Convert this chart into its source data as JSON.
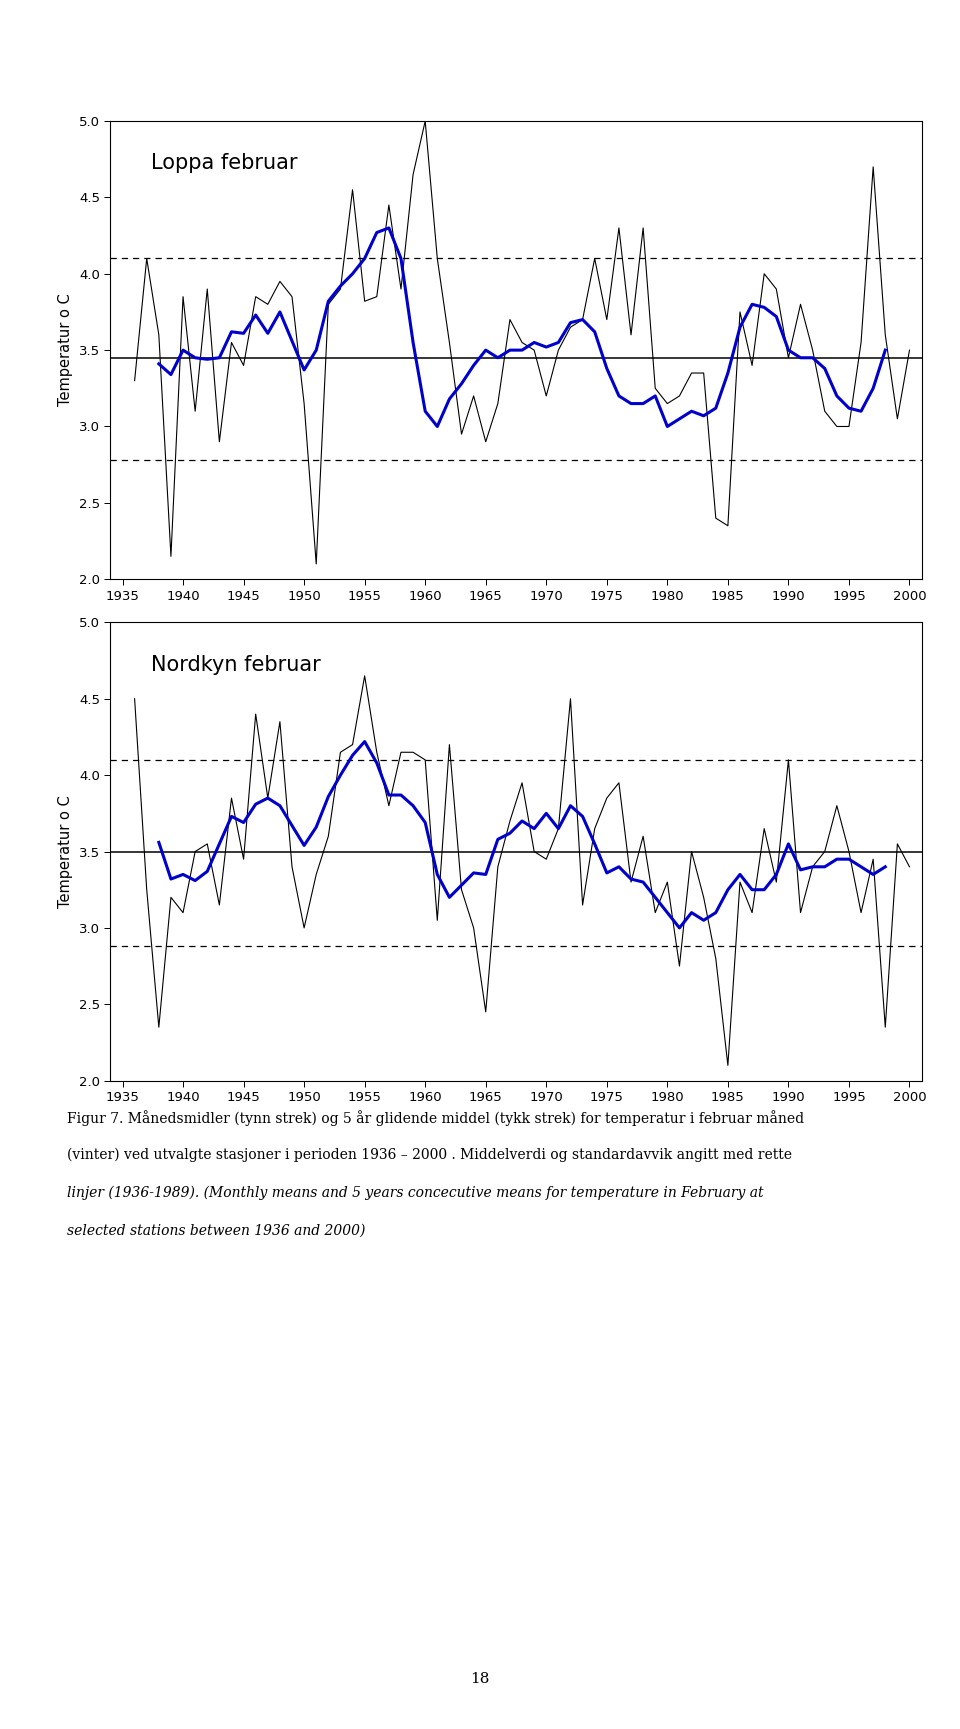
{
  "loppa": {
    "title": "Loppa februar",
    "ylabel": "Temperatur o C",
    "ylim": [
      2.0,
      5.0
    ],
    "yticks": [
      2.0,
      2.5,
      3.0,
      3.5,
      4.0,
      4.5,
      5.0
    ],
    "mean_line": 3.45,
    "upper_std": 4.1,
    "lower_std": 2.78,
    "monthly": {
      "years": [
        1936,
        1937,
        1938,
        1939,
        1940,
        1941,
        1942,
        1943,
        1944,
        1945,
        1946,
        1947,
        1948,
        1949,
        1950,
        1951,
        1952,
        1953,
        1954,
        1955,
        1956,
        1957,
        1958,
        1959,
        1960,
        1961,
        1962,
        1963,
        1964,
        1965,
        1966,
        1967,
        1968,
        1969,
        1970,
        1971,
        1972,
        1973,
        1974,
        1975,
        1976,
        1977,
        1978,
        1979,
        1980,
        1981,
        1982,
        1983,
        1984,
        1985,
        1986,
        1987,
        1988,
        1989,
        1990,
        1991,
        1992,
        1993,
        1994,
        1995,
        1996,
        1997,
        1998,
        1999,
        2000
      ],
      "values": [
        3.3,
        4.1,
        3.6,
        2.15,
        3.85,
        3.1,
        3.9,
        2.9,
        3.55,
        3.4,
        3.85,
        3.8,
        3.95,
        3.85,
        3.15,
        2.1,
        3.8,
        3.9,
        4.55,
        3.82,
        3.85,
        4.45,
        3.9,
        4.65,
        5.0,
        4.1,
        3.55,
        2.95,
        3.2,
        2.9,
        3.15,
        3.7,
        3.55,
        3.5,
        3.2,
        3.5,
        3.65,
        3.7,
        4.1,
        3.7,
        4.3,
        3.6,
        4.3,
        3.25,
        3.15,
        3.2,
        3.35,
        3.35,
        2.4,
        2.35,
        3.75,
        3.4,
        4.0,
        3.9,
        3.45,
        3.8,
        3.5,
        3.1,
        3.0,
        3.0,
        3.55,
        4.7,
        3.6,
        3.05,
        3.5
      ]
    },
    "smooth": {
      "years": [
        1938,
        1939,
        1940,
        1941,
        1942,
        1943,
        1944,
        1945,
        1946,
        1947,
        1948,
        1949,
        1950,
        1951,
        1952,
        1953,
        1954,
        1955,
        1956,
        1957,
        1958,
        1959,
        1960,
        1961,
        1962,
        1963,
        1964,
        1965,
        1966,
        1967,
        1968,
        1969,
        1970,
        1971,
        1972,
        1973,
        1974,
        1975,
        1976,
        1977,
        1978,
        1979,
        1980,
        1981,
        1982,
        1983,
        1984,
        1985,
        1986,
        1987,
        1988,
        1989,
        1990,
        1991,
        1992,
        1993,
        1994,
        1995,
        1996,
        1997,
        1998
      ],
      "values": [
        3.41,
        3.34,
        3.5,
        3.45,
        3.44,
        3.45,
        3.62,
        3.61,
        3.73,
        3.61,
        3.75,
        3.56,
        3.37,
        3.5,
        3.82,
        3.92,
        4.0,
        4.1,
        4.27,
        4.3,
        4.1,
        3.55,
        3.1,
        3.0,
        3.18,
        3.28,
        3.4,
        3.5,
        3.45,
        3.5,
        3.5,
        3.55,
        3.52,
        3.55,
        3.68,
        3.7,
        3.62,
        3.38,
        3.2,
        3.15,
        3.15,
        3.2,
        3.0,
        3.05,
        3.1,
        3.07,
        3.12,
        3.35,
        3.65,
        3.8,
        3.78,
        3.72,
        3.5,
        3.45,
        3.45,
        3.38,
        3.2,
        3.12,
        3.1,
        3.25,
        3.5
      ]
    }
  },
  "nordkyn": {
    "title": "Nordkyn februar",
    "ylabel": "Temperatur o C",
    "ylim": [
      2.0,
      5.0
    ],
    "yticks": [
      2.0,
      2.5,
      3.0,
      3.5,
      4.0,
      4.5,
      5.0
    ],
    "mean_line": 3.5,
    "upper_std": 4.1,
    "lower_std": 2.88,
    "monthly": {
      "years": [
        1936,
        1937,
        1938,
        1939,
        1940,
        1941,
        1942,
        1943,
        1944,
        1945,
        1946,
        1947,
        1948,
        1949,
        1950,
        1951,
        1952,
        1953,
        1954,
        1955,
        1956,
        1957,
        1958,
        1959,
        1960,
        1961,
        1962,
        1963,
        1964,
        1965,
        1966,
        1967,
        1968,
        1969,
        1970,
        1971,
        1972,
        1973,
        1974,
        1975,
        1976,
        1977,
        1978,
        1979,
        1980,
        1981,
        1982,
        1983,
        1984,
        1985,
        1986,
        1987,
        1988,
        1989,
        1990,
        1991,
        1992,
        1993,
        1994,
        1995,
        1996,
        1997,
        1998,
        1999,
        2000
      ],
      "values": [
        4.5,
        3.25,
        2.35,
        3.2,
        3.1,
        3.5,
        3.55,
        3.15,
        3.85,
        3.45,
        4.4,
        3.85,
        4.35,
        3.4,
        3.0,
        3.35,
        3.6,
        4.15,
        4.2,
        4.65,
        4.15,
        3.8,
        4.15,
        4.15,
        4.1,
        3.05,
        4.2,
        3.25,
        3.0,
        2.45,
        3.4,
        3.7,
        3.95,
        3.5,
        3.45,
        3.65,
        4.5,
        3.15,
        3.65,
        3.85,
        3.95,
        3.3,
        3.6,
        3.1,
        3.3,
        2.75,
        3.5,
        3.2,
        2.8,
        2.1,
        3.3,
        3.1,
        3.65,
        3.3,
        4.1,
        3.1,
        3.4,
        3.5,
        3.8,
        3.5,
        3.1,
        3.45,
        2.35,
        3.55,
        3.4
      ]
    },
    "smooth": {
      "years": [
        1938,
        1939,
        1940,
        1941,
        1942,
        1943,
        1944,
        1945,
        1946,
        1947,
        1948,
        1949,
        1950,
        1951,
        1952,
        1953,
        1954,
        1955,
        1956,
        1957,
        1958,
        1959,
        1960,
        1961,
        1962,
        1963,
        1964,
        1965,
        1966,
        1967,
        1968,
        1969,
        1970,
        1971,
        1972,
        1973,
        1974,
        1975,
        1976,
        1977,
        1978,
        1979,
        1980,
        1981,
        1982,
        1983,
        1984,
        1985,
        1986,
        1987,
        1988,
        1989,
        1990,
        1991,
        1992,
        1993,
        1994,
        1995,
        1996,
        1997,
        1998
      ],
      "values": [
        3.56,
        3.32,
        3.35,
        3.31,
        3.37,
        3.55,
        3.73,
        3.69,
        3.81,
        3.85,
        3.8,
        3.67,
        3.54,
        3.66,
        3.86,
        4.0,
        4.13,
        4.22,
        4.08,
        3.87,
        3.87,
        3.8,
        3.69,
        3.35,
        3.2,
        3.28,
        3.36,
        3.35,
        3.58,
        3.62,
        3.7,
        3.65,
        3.75,
        3.65,
        3.8,
        3.73,
        3.55,
        3.36,
        3.4,
        3.32,
        3.3,
        3.2,
        3.1,
        3.0,
        3.1,
        3.05,
        3.1,
        3.25,
        3.35,
        3.25,
        3.25,
        3.35,
        3.55,
        3.38,
        3.4,
        3.4,
        3.45,
        3.45,
        3.4,
        3.35,
        3.4
      ]
    }
  },
  "xlabel_ticks": [
    1935,
    1940,
    1945,
    1950,
    1955,
    1960,
    1965,
    1970,
    1975,
    1980,
    1985,
    1990,
    1995,
    2000
  ],
  "xlim": [
    1934,
    2001
  ],
  "caption_line1": "Figur 7. Månedsmidler (tynn strek) og 5 år glidende middel (tykk strek) for temperatur i februar måned",
  "caption_line2": "(vinter) ved utvalgte stasjoner i perioden 1936 – 2000 . Middelverdi og standardavvik angitt med rette",
  "caption_line3": "linjer (1936-1989). (Monthly means and 5 years concecutive means for temperature in February at",
  "caption_line4": "selected stations between 1936 and 2000)",
  "page_number": "18",
  "background_color": "#ffffff",
  "line_color_monthly": "#000000",
  "line_color_smooth": "#0000cc",
  "line_color_mean": "#000000",
  "line_color_std": "#000000"
}
